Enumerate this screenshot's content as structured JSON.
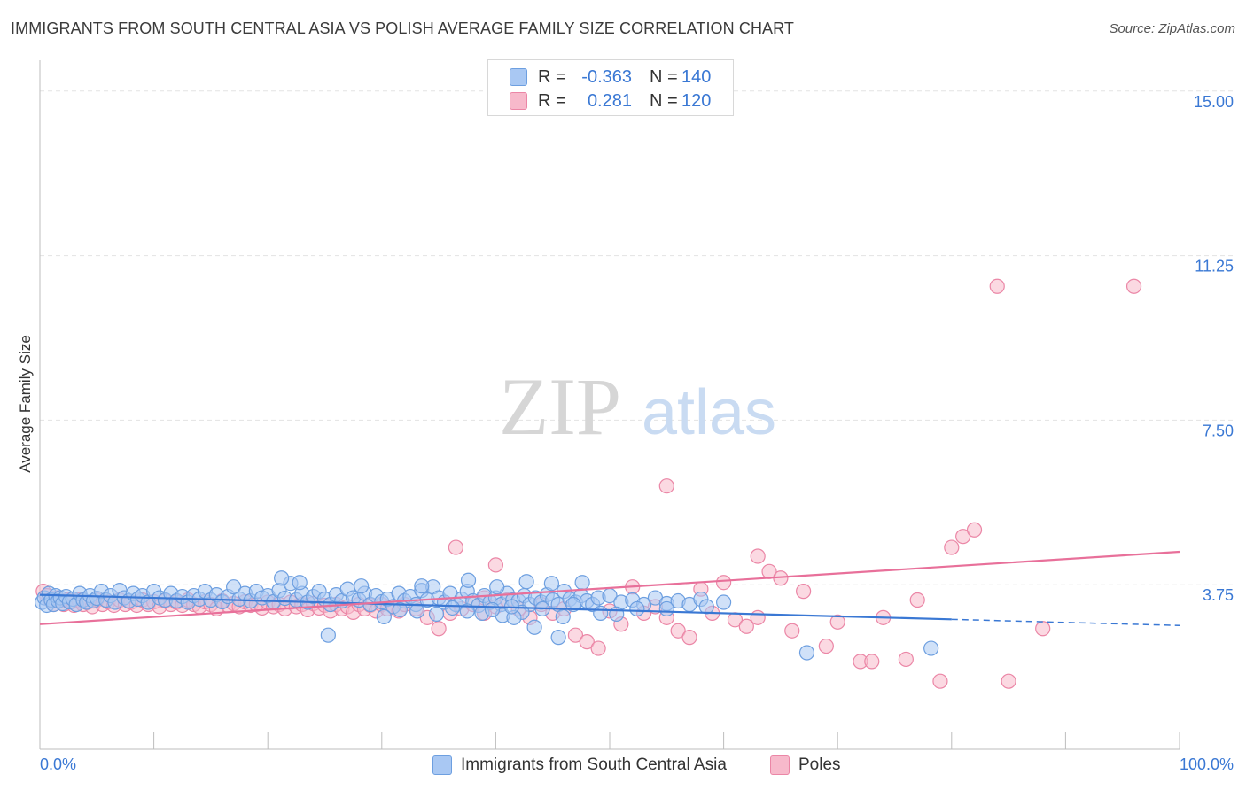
{
  "title": "IMMIGRANTS FROM SOUTH CENTRAL ASIA VS POLISH AVERAGE FAMILY SIZE CORRELATION CHART",
  "source": "Source: ZipAtlas.com",
  "watermark": {
    "zip": "ZIP",
    "atlas": "atlas"
  },
  "colors": {
    "blue_fill": "#a9c8f3",
    "blue_stroke": "#6d9fe0",
    "blue_line": "#3a78d4",
    "pink_fill": "#f7b9cb",
    "pink_stroke": "#eb86a6",
    "pink_line": "#e8709a",
    "tick_text": "#3a78d4",
    "grid": "#e3e3e3"
  },
  "legend": {
    "rows": [
      {
        "r_label": "R =",
        "r_value": "-0.363",
        "n_label": "N =",
        "n_value": "140"
      },
      {
        "r_label": "R =",
        "r_value": "0.281",
        "n_label": "N =",
        "n_value": "120"
      }
    ]
  },
  "bottom_legend": {
    "series1": "Immigrants from South Central Asia",
    "series2": "Poles"
  },
  "chart_data": {
    "type": "scatter",
    "ylabel": "Average Family Size",
    "xlabel": "",
    "x_tick_labels": {
      "left": "0.0%",
      "right": "100.0%"
    },
    "y_ticks": [
      3.75,
      7.5,
      11.25,
      15.0
    ],
    "y_tick_labels": [
      "3.75",
      "7.50",
      "11.25",
      "15.00"
    ],
    "xlim": [
      0,
      100
    ],
    "ylim": [
      0,
      15.5
    ],
    "grid": true,
    "legend_position": "top-center",
    "series": [
      {
        "name": "Immigrants from South Central Asia",
        "r": -0.363,
        "n": 140,
        "trend": {
          "x0": 0,
          "y0": 3.52,
          "x1": 80,
          "y1": 2.96,
          "dashed_to_x": 100,
          "dashed_to_y": 2.82
        },
        "points": [
          [
            0.2,
            3.35
          ],
          [
            0.4,
            3.45
          ],
          [
            0.6,
            3.28
          ],
          [
            0.8,
            3.55
          ],
          [
            1.0,
            3.4
          ],
          [
            1.2,
            3.3
          ],
          [
            1.4,
            3.5
          ],
          [
            1.6,
            3.38
          ],
          [
            1.8,
            3.45
          ],
          [
            2.0,
            3.32
          ],
          [
            2.3,
            3.48
          ],
          [
            2.6,
            3.36
          ],
          [
            2.9,
            3.42
          ],
          [
            3.2,
            3.3
          ],
          [
            3.5,
            3.55
          ],
          [
            3.8,
            3.4
          ],
          [
            4.1,
            3.35
          ],
          [
            4.4,
            3.5
          ],
          [
            4.7,
            3.38
          ],
          [
            5.0,
            3.44
          ],
          [
            5.4,
            3.6
          ],
          [
            5.8,
            3.4
          ],
          [
            6.2,
            3.5
          ],
          [
            6.6,
            3.35
          ],
          [
            7.0,
            3.62
          ],
          [
            7.4,
            3.45
          ],
          [
            7.8,
            3.38
          ],
          [
            8.2,
            3.55
          ],
          [
            8.6,
            3.42
          ],
          [
            9.0,
            3.5
          ],
          [
            9.5,
            3.35
          ],
          [
            10.0,
            3.6
          ],
          [
            10.5,
            3.45
          ],
          [
            11.0,
            3.4
          ],
          [
            11.5,
            3.55
          ],
          [
            12.0,
            3.38
          ],
          [
            12.5,
            3.48
          ],
          [
            13.0,
            3.35
          ],
          [
            13.5,
            3.5
          ],
          [
            14.0,
            3.42
          ],
          [
            14.5,
            3.6
          ],
          [
            15.0,
            3.4
          ],
          [
            15.5,
            3.52
          ],
          [
            16.0,
            3.36
          ],
          [
            16.5,
            3.48
          ],
          [
            17.0,
            3.7
          ],
          [
            17.5,
            3.42
          ],
          [
            18.0,
            3.55
          ],
          [
            18.5,
            3.38
          ],
          [
            19.0,
            3.6
          ],
          [
            19.5,
            3.45
          ],
          [
            20.0,
            3.5
          ],
          [
            20.5,
            3.36
          ],
          [
            21.0,
            3.62
          ],
          [
            21.5,
            3.44
          ],
          [
            22.0,
            3.78
          ],
          [
            22.5,
            3.4
          ],
          [
            23.0,
            3.55
          ],
          [
            23.5,
            3.35
          ],
          [
            24.0,
            3.48
          ],
          [
            24.5,
            3.6
          ],
          [
            25.0,
            3.42
          ],
          [
            25.5,
            3.3
          ],
          [
            26.0,
            3.52
          ],
          [
            26.5,
            3.38
          ],
          [
            27.0,
            3.65
          ],
          [
            27.5,
            3.45
          ],
          [
            28.0,
            3.4
          ],
          [
            28.5,
            3.55
          ],
          [
            29.0,
            3.3
          ],
          [
            29.5,
            3.5
          ],
          [
            30.0,
            3.36
          ],
          [
            30.5,
            3.42
          ],
          [
            31.0,
            3.25
          ],
          [
            31.5,
            3.55
          ],
          [
            32.0,
            3.38
          ],
          [
            32.5,
            3.48
          ],
          [
            33.0,
            3.3
          ],
          [
            33.5,
            3.62
          ],
          [
            34.0,
            3.4
          ],
          [
            34.5,
            3.7
          ],
          [
            35.0,
            3.45
          ],
          [
            35.5,
            3.35
          ],
          [
            36.0,
            3.55
          ],
          [
            36.5,
            3.3
          ],
          [
            37.0,
            3.42
          ],
          [
            37.5,
            3.6
          ],
          [
            38.0,
            3.38
          ],
          [
            38.5,
            3.28
          ],
          [
            39.0,
            3.5
          ],
          [
            39.5,
            3.35
          ],
          [
            40.0,
            3.45
          ],
          [
            40.5,
            3.3
          ],
          [
            41.0,
            3.55
          ],
          [
            41.5,
            3.4
          ],
          [
            42.0,
            3.38
          ],
          [
            42.5,
            3.5
          ],
          [
            43.0,
            3.3
          ],
          [
            43.5,
            3.45
          ],
          [
            44.0,
            3.35
          ],
          [
            44.5,
            3.52
          ],
          [
            45.0,
            3.4
          ],
          [
            45.5,
            3.3
          ],
          [
            46.0,
            3.6
          ],
          [
            46.5,
            3.42
          ],
          [
            47.0,
            3.35
          ],
          [
            47.5,
            3.5
          ],
          [
            48.0,
            3.38
          ],
          [
            48.5,
            3.3
          ],
          [
            49.0,
            3.45
          ],
          [
            50.0,
            3.5
          ],
          [
            51.0,
            3.35
          ],
          [
            52.0,
            3.4
          ],
          [
            53.0,
            3.3
          ],
          [
            54.0,
            3.45
          ],
          [
            55.0,
            3.32
          ],
          [
            56.0,
            3.38
          ],
          [
            57.0,
            3.3
          ],
          [
            58.0,
            3.42
          ],
          [
            60.0,
            3.35
          ],
          [
            30.2,
            3.02
          ],
          [
            31.6,
            3.18
          ],
          [
            33.1,
            3.15
          ],
          [
            34.8,
            3.08
          ],
          [
            36.2,
            3.22
          ],
          [
            38.8,
            3.1
          ],
          [
            40.6,
            3.05
          ],
          [
            42.3,
            3.12
          ],
          [
            44.1,
            3.2
          ],
          [
            45.9,
            3.02
          ],
          [
            21.2,
            3.9
          ],
          [
            22.8,
            3.8
          ],
          [
            25.3,
            2.6
          ],
          [
            28.2,
            3.72
          ],
          [
            33.5,
            3.72
          ],
          [
            37.6,
            3.85
          ],
          [
            40.1,
            3.7
          ],
          [
            42.7,
            3.82
          ],
          [
            44.9,
            3.78
          ],
          [
            45.5,
            2.55
          ],
          [
            41.6,
            3.0
          ],
          [
            43.4,
            2.78
          ],
          [
            37.5,
            3.15
          ],
          [
            39.7,
            3.18
          ],
          [
            41.4,
            3.25
          ],
          [
            46.8,
            3.3
          ],
          [
            47.6,
            3.8
          ],
          [
            49.2,
            3.1
          ],
          [
            50.6,
            3.08
          ],
          [
            52.4,
            3.2
          ],
          [
            67.3,
            2.2
          ],
          [
            78.2,
            2.3
          ],
          [
            55.0,
            3.2
          ],
          [
            58.5,
            3.25
          ]
        ]
      },
      {
        "name": "Poles",
        "r": 0.281,
        "n": 120,
        "trend": {
          "x0": 0,
          "y0": 2.85,
          "x1": 100,
          "y1": 4.5
        },
        "points": [
          [
            0.3,
            3.6
          ],
          [
            0.6,
            3.5
          ],
          [
            0.9,
            3.4
          ],
          [
            1.2,
            3.3
          ],
          [
            1.5,
            3.45
          ],
          [
            1.8,
            3.38
          ],
          [
            2.1,
            3.3
          ],
          [
            2.4,
            3.4
          ],
          [
            2.7,
            3.35
          ],
          [
            3.0,
            3.28
          ],
          [
            3.4,
            3.4
          ],
          [
            3.8,
            3.3
          ],
          [
            4.2,
            3.35
          ],
          [
            4.6,
            3.25
          ],
          [
            5.0,
            3.4
          ],
          [
            5.5,
            3.3
          ],
          [
            6.0,
            3.36
          ],
          [
            6.5,
            3.28
          ],
          [
            7.0,
            3.4
          ],
          [
            7.5,
            3.3
          ],
          [
            8.0,
            3.35
          ],
          [
            8.5,
            3.28
          ],
          [
            9.0,
            3.4
          ],
          [
            9.5,
            3.3
          ],
          [
            10.0,
            3.36
          ],
          [
            10.5,
            3.25
          ],
          [
            11.0,
            3.38
          ],
          [
            11.5,
            3.3
          ],
          [
            12.0,
            3.35
          ],
          [
            12.5,
            3.28
          ],
          [
            13.0,
            3.4
          ],
          [
            13.5,
            3.3
          ],
          [
            14.0,
            3.25
          ],
          [
            14.5,
            3.36
          ],
          [
            15.0,
            3.3
          ],
          [
            15.5,
            3.2
          ],
          [
            16.0,
            3.38
          ],
          [
            16.5,
            3.28
          ],
          [
            17.0,
            3.32
          ],
          [
            17.5,
            3.25
          ],
          [
            18.0,
            3.36
          ],
          [
            18.5,
            3.28
          ],
          [
            19.0,
            3.3
          ],
          [
            19.5,
            3.22
          ],
          [
            20.0,
            3.35
          ],
          [
            20.5,
            3.25
          ],
          [
            21.0,
            3.3
          ],
          [
            21.5,
            3.2
          ],
          [
            22.0,
            3.35
          ],
          [
            22.5,
            3.25
          ],
          [
            23.0,
            3.3
          ],
          [
            23.5,
            3.18
          ],
          [
            24.0,
            3.32
          ],
          [
            24.5,
            3.22
          ],
          [
            25.0,
            3.28
          ],
          [
            25.5,
            3.15
          ],
          [
            26.0,
            3.3
          ],
          [
            26.5,
            3.2
          ],
          [
            27.0,
            3.25
          ],
          [
            27.5,
            3.12
          ],
          [
            28.0,
            3.3
          ],
          [
            28.5,
            3.2
          ],
          [
            29.0,
            3.28
          ],
          [
            29.5,
            3.15
          ],
          [
            30.0,
            3.3
          ],
          [
            30.5,
            3.2
          ],
          [
            31.0,
            3.25
          ],
          [
            31.5,
            3.15
          ],
          [
            32.0,
            3.3
          ],
          [
            33.0,
            3.2
          ],
          [
            34.0,
            3.0
          ],
          [
            35.0,
            2.75
          ],
          [
            36.0,
            3.1
          ],
          [
            37.0,
            3.2
          ],
          [
            38.0,
            3.3
          ],
          [
            39.0,
            3.1
          ],
          [
            40.0,
            3.25
          ],
          [
            41.0,
            3.4
          ],
          [
            42.0,
            3.2
          ],
          [
            43.0,
            3.0
          ],
          [
            44.0,
            3.3
          ],
          [
            45.0,
            3.1
          ],
          [
            46.0,
            3.2
          ],
          [
            47.0,
            2.6
          ],
          [
            48.0,
            2.45
          ],
          [
            49.0,
            2.3
          ],
          [
            50.0,
            3.15
          ],
          [
            51.0,
            2.85
          ],
          [
            52.0,
            3.7
          ],
          [
            53.0,
            3.1
          ],
          [
            54.0,
            3.25
          ],
          [
            55.0,
            3.0
          ],
          [
            56.0,
            2.7
          ],
          [
            57.0,
            2.55
          ],
          [
            58.0,
            3.65
          ],
          [
            59.0,
            3.1
          ],
          [
            60.0,
            3.8
          ],
          [
            61.0,
            2.95
          ],
          [
            62.0,
            2.8
          ],
          [
            63.0,
            3.0
          ],
          [
            64.0,
            4.05
          ],
          [
            65.0,
            3.9
          ],
          [
            66.0,
            2.7
          ],
          [
            67.0,
            3.6
          ],
          [
            69.0,
            2.35
          ],
          [
            70.0,
            2.9
          ],
          [
            72.0,
            2.0
          ],
          [
            73.0,
            2.0
          ],
          [
            74.0,
            3.0
          ],
          [
            76.0,
            2.05
          ],
          [
            77.0,
            3.4
          ],
          [
            80.0,
            4.6
          ],
          [
            81.0,
            4.85
          ],
          [
            82.0,
            5.0
          ],
          [
            84.0,
            10.55
          ],
          [
            96.0,
            10.55
          ],
          [
            55.0,
            6.0
          ],
          [
            85.0,
            1.55
          ],
          [
            79.0,
            1.55
          ],
          [
            88.0,
            2.75
          ],
          [
            36.5,
            4.6
          ],
          [
            40.0,
            4.2
          ],
          [
            63.0,
            4.4
          ],
          [
            39.0,
            3.45
          ]
        ]
      }
    ]
  }
}
